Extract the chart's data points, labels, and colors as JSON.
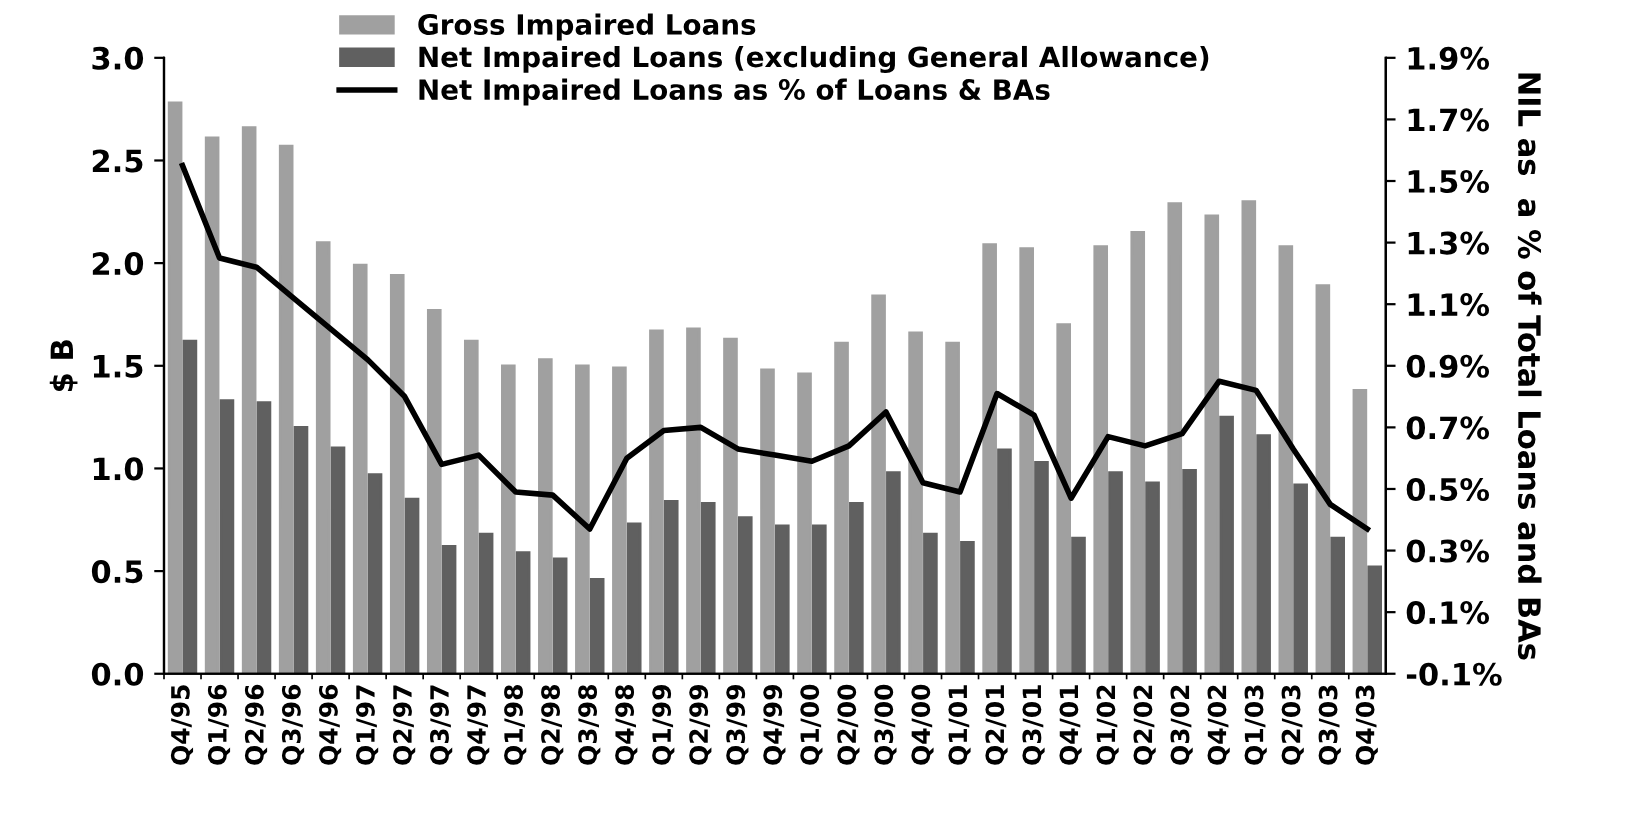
{
  "chart_data": {
    "type": "bar",
    "categories": [
      "Q4/95",
      "Q1/96",
      "Q2/96",
      "Q3/96",
      "Q4/96",
      "Q1/97",
      "Q2/97",
      "Q3/97",
      "Q4/97",
      "Q1/98",
      "Q2/98",
      "Q3/98",
      "Q4/98",
      "Q1/99",
      "Q2/99",
      "Q3/99",
      "Q4/99",
      "Q1/00",
      "Q2/00",
      "Q3/00",
      "Q4/00",
      "Q1/01",
      "Q2/01",
      "Q3/01",
      "Q4/01",
      "Q1/02",
      "Q2/02",
      "Q3/02",
      "Q4/02",
      "Q1/03",
      "Q2/03",
      "Q3/03",
      "Q4/03"
    ],
    "ylabel": "$ B",
    "y2label": "NIL as  a % of Total Loans and BAs",
    "series": [
      {
        "name": "Gross Impaired Loans",
        "color": "#a0a0a0",
        "values": [
          2.78,
          2.61,
          2.66,
          2.57,
          2.1,
          1.99,
          1.94,
          1.77,
          1.62,
          1.5,
          1.53,
          1.5,
          1.49,
          1.67,
          1.68,
          1.63,
          1.48,
          1.46,
          1.61,
          1.84,
          1.66,
          1.61,
          2.09,
          2.07,
          1.7,
          2.08,
          2.15,
          2.29,
          2.23,
          2.3,
          2.08,
          1.89,
          1.38
        ]
      },
      {
        "name": "Net Impaired Loans (excluding General Allowance)",
        "color": "#606060",
        "values": [
          1.62,
          1.33,
          1.32,
          1.2,
          1.1,
          0.97,
          0.85,
          0.62,
          0.68,
          0.59,
          0.56,
          0.46,
          0.73,
          0.84,
          0.83,
          0.76,
          0.72,
          0.72,
          0.83,
          0.98,
          0.68,
          0.64,
          1.09,
          1.03,
          0.66,
          0.98,
          0.93,
          0.99,
          1.25,
          1.16,
          0.92,
          0.66,
          0.52
        ]
      },
      {
        "name": "Net Impaired Loans as % of Loans & BAs",
        "type": "line",
        "axis": "y2",
        "color": "#000000",
        "values": [
          1.55,
          1.25,
          1.22,
          1.12,
          1.02,
          0.92,
          0.8,
          0.58,
          0.61,
          0.49,
          0.48,
          0.37,
          0.6,
          0.69,
          0.7,
          0.63,
          0.61,
          0.59,
          0.64,
          0.75,
          0.52,
          0.49,
          0.81,
          0.74,
          0.47,
          0.67,
          0.64,
          0.68,
          0.85,
          0.82,
          0.63,
          0.45,
          0.37
        ]
      }
    ],
    "ylim": [
      0,
      3.0
    ],
    "yticks": [
      {
        "value": 0,
        "label": "0.0"
      },
      {
        "value": 0.5,
        "label": "0.5"
      },
      {
        "value": 1.0,
        "label": "1.0"
      },
      {
        "value": 1.5,
        "label": "1.5"
      },
      {
        "value": 2.0,
        "label": "2.0"
      },
      {
        "value": 2.5,
        "label": "2.5"
      },
      {
        "value": 3.0,
        "label": "3.0"
      }
    ],
    "y2lim": [
      -0.1,
      1.9
    ],
    "y2ticks": [
      {
        "value": -0.1,
        "label": "-0.1%"
      },
      {
        "value": 0.1,
        "label": "0.1%"
      },
      {
        "value": 0.3,
        "label": "0.3%"
      },
      {
        "value": 0.5,
        "label": "0.5%"
      },
      {
        "value": 0.7,
        "label": "0.7%"
      },
      {
        "value": 0.9,
        "label": "0.9%"
      },
      {
        "value": 1.1,
        "label": "1.1%"
      },
      {
        "value": 1.3,
        "label": "1.3%"
      },
      {
        "value": 1.5,
        "label": "1.5%"
      },
      {
        "value": 1.7,
        "label": "1.7%"
      },
      {
        "value": 1.9,
        "label": "1.9%"
      }
    ],
    "grid": false,
    "legend": "top",
    "marker": "none",
    "line_style": "solid"
  }
}
